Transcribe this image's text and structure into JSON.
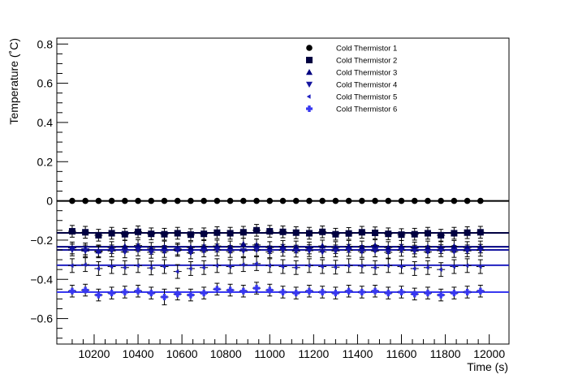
{
  "chart_data": {
    "type": "scatter",
    "title": "",
    "xlabel": "Time (s)",
    "ylabel": "Temperature (˚C)",
    "xlim": [
      10030,
      12090
    ],
    "ylim": [
      -0.73,
      0.83
    ],
    "grid": false,
    "legend_position": "top-right",
    "x_ticks": [
      10200,
      10400,
      10600,
      10800,
      11000,
      11200,
      11400,
      11600,
      11800,
      12000
    ],
    "x_tick_labels": [
      "10200",
      "10400",
      "10600",
      "10800",
      "11000",
      "11200",
      "11400",
      "11600",
      "11800",
      "12000"
    ],
    "y_ticks": [
      -0.6,
      -0.4,
      -0.2,
      0,
      0.2,
      0.4,
      0.6,
      0.8
    ],
    "y_tick_labels": [
      "−0.6",
      "−0.4",
      "−0.2",
      "0",
      "0.2",
      "0.4",
      "0.6",
      "0.8"
    ],
    "x": [
      10100,
      10160,
      10220,
      10280,
      10340,
      10400,
      10460,
      10520,
      10580,
      10640,
      10700,
      10760,
      10820,
      10880,
      10940,
      11000,
      11060,
      11120,
      11180,
      11240,
      11300,
      11360,
      11420,
      11480,
      11540,
      11600,
      11660,
      11720,
      11780,
      11840,
      11900,
      11960
    ],
    "series": [
      {
        "name": "Cold Thermistor 1",
        "marker": "circle",
        "color": "#000000",
        "fit_value": 0.0,
        "values": [
          0,
          0,
          0,
          0,
          0,
          0,
          0,
          0,
          0,
          0,
          0,
          0,
          0,
          0,
          0,
          0,
          0,
          0,
          0,
          0,
          0,
          0,
          0,
          0,
          0,
          0,
          0,
          0,
          0,
          0,
          0,
          0
        ],
        "errors": [
          0,
          0,
          0,
          0,
          0,
          0,
          0,
          0,
          0,
          0,
          0,
          0,
          0,
          0,
          0,
          0,
          0,
          0,
          0,
          0,
          0,
          0,
          0,
          0,
          0,
          0,
          0,
          0,
          0,
          0,
          0,
          0
        ]
      },
      {
        "name": "Cold Thermistor 2",
        "marker": "square",
        "color": "#000040",
        "fit_value": -0.163,
        "values": [
          -0.155,
          -0.16,
          -0.175,
          -0.165,
          -0.17,
          -0.158,
          -0.168,
          -0.17,
          -0.165,
          -0.172,
          -0.168,
          -0.162,
          -0.165,
          -0.16,
          -0.15,
          -0.155,
          -0.158,
          -0.162,
          -0.165,
          -0.158,
          -0.17,
          -0.166,
          -0.16,
          -0.163,
          -0.168,
          -0.172,
          -0.17,
          -0.165,
          -0.175,
          -0.165,
          -0.162,
          -0.16
        ],
        "errors": [
          0.03,
          0.03,
          0.03,
          0.03,
          0.03,
          0.03,
          0.03,
          0.03,
          0.03,
          0.03,
          0.03,
          0.03,
          0.03,
          0.03,
          0.03,
          0.03,
          0.03,
          0.03,
          0.03,
          0.03,
          0.03,
          0.03,
          0.03,
          0.03,
          0.03,
          0.03,
          0.03,
          0.03,
          0.03,
          0.03,
          0.03,
          0.03
        ]
      },
      {
        "name": "Cold Thermistor 3",
        "marker": "triangle-up",
        "color": "#000080",
        "fit_value": -0.234,
        "values": [
          -0.24,
          -0.245,
          -0.255,
          -0.238,
          -0.232,
          -0.228,
          -0.242,
          -0.235,
          -0.245,
          -0.238,
          -0.232,
          -0.23,
          -0.235,
          -0.22,
          -0.225,
          -0.238,
          -0.232,
          -0.235,
          -0.24,
          -0.23,
          -0.238,
          -0.232,
          -0.235,
          -0.228,
          -0.238,
          -0.232,
          -0.24,
          -0.235,
          -0.238,
          -0.232,
          -0.238,
          -0.235
        ],
        "errors": [
          0.03,
          0.03,
          0.03,
          0.03,
          0.03,
          0.03,
          0.03,
          0.03,
          0.03,
          0.03,
          0.03,
          0.03,
          0.03,
          0.03,
          0.03,
          0.03,
          0.03,
          0.03,
          0.03,
          0.03,
          0.03,
          0.03,
          0.03,
          0.03,
          0.03,
          0.03,
          0.03,
          0.03,
          0.03,
          0.03,
          0.03,
          0.03
        ]
      },
      {
        "name": "Cold Thermistor 4",
        "marker": "triangle-down",
        "color": "#1515a0",
        "fit_value": -0.25,
        "values": [
          -0.25,
          -0.255,
          -0.26,
          -0.255,
          -0.26,
          -0.25,
          -0.262,
          -0.258,
          -0.252,
          -0.265,
          -0.255,
          -0.25,
          -0.258,
          -0.255,
          -0.25,
          -0.26,
          -0.252,
          -0.256,
          -0.254,
          -0.26,
          -0.255,
          -0.252,
          -0.258,
          -0.255,
          -0.262,
          -0.252,
          -0.256,
          -0.26,
          -0.254,
          -0.258,
          -0.255,
          -0.252
        ],
        "errors": [
          0.03,
          0.03,
          0.03,
          0.03,
          0.03,
          0.03,
          0.03,
          0.03,
          0.03,
          0.03,
          0.03,
          0.03,
          0.03,
          0.03,
          0.03,
          0.03,
          0.03,
          0.03,
          0.03,
          0.03,
          0.03,
          0.03,
          0.03,
          0.03,
          0.03,
          0.03,
          0.03,
          0.03,
          0.03,
          0.03,
          0.03,
          0.03
        ]
      },
      {
        "name": "Cold Thermistor 5",
        "marker": "triangle-left",
        "color": "#2020c0",
        "fit_value": -0.328,
        "values": [
          -0.33,
          -0.325,
          -0.345,
          -0.335,
          -0.34,
          -0.33,
          -0.342,
          -0.335,
          -0.36,
          -0.345,
          -0.34,
          -0.33,
          -0.335,
          -0.325,
          -0.32,
          -0.33,
          -0.335,
          -0.34,
          -0.33,
          -0.335,
          -0.338,
          -0.33,
          -0.332,
          -0.34,
          -0.33,
          -0.335,
          -0.345,
          -0.34,
          -0.35,
          -0.335,
          -0.33,
          -0.335
        ],
        "errors": [
          0.035,
          0.035,
          0.035,
          0.035,
          0.035,
          0.035,
          0.035,
          0.035,
          0.035,
          0.035,
          0.035,
          0.035,
          0.035,
          0.035,
          0.035,
          0.035,
          0.035,
          0.035,
          0.035,
          0.035,
          0.035,
          0.035,
          0.035,
          0.035,
          0.035,
          0.035,
          0.035,
          0.035,
          0.035,
          0.035,
          0.035,
          0.035
        ]
      },
      {
        "name": "Cold Thermistor 6",
        "marker": "cross",
        "color": "#3838f0",
        "fit_value": -0.465,
        "values": [
          -0.46,
          -0.455,
          -0.48,
          -0.47,
          -0.465,
          -0.46,
          -0.47,
          -0.49,
          -0.475,
          -0.48,
          -0.47,
          -0.45,
          -0.455,
          -0.46,
          -0.445,
          -0.455,
          -0.465,
          -0.47,
          -0.46,
          -0.465,
          -0.47,
          -0.46,
          -0.465,
          -0.46,
          -0.47,
          -0.465,
          -0.475,
          -0.47,
          -0.48,
          -0.47,
          -0.465,
          -0.46
        ],
        "errors": [
          0.03,
          0.03,
          0.03,
          0.03,
          0.03,
          0.03,
          0.03,
          0.04,
          0.03,
          0.03,
          0.03,
          0.03,
          0.03,
          0.03,
          0.03,
          0.03,
          0.03,
          0.03,
          0.03,
          0.03,
          0.03,
          0.03,
          0.03,
          0.03,
          0.03,
          0.03,
          0.03,
          0.03,
          0.03,
          0.03,
          0.03,
          0.03
        ]
      }
    ]
  }
}
